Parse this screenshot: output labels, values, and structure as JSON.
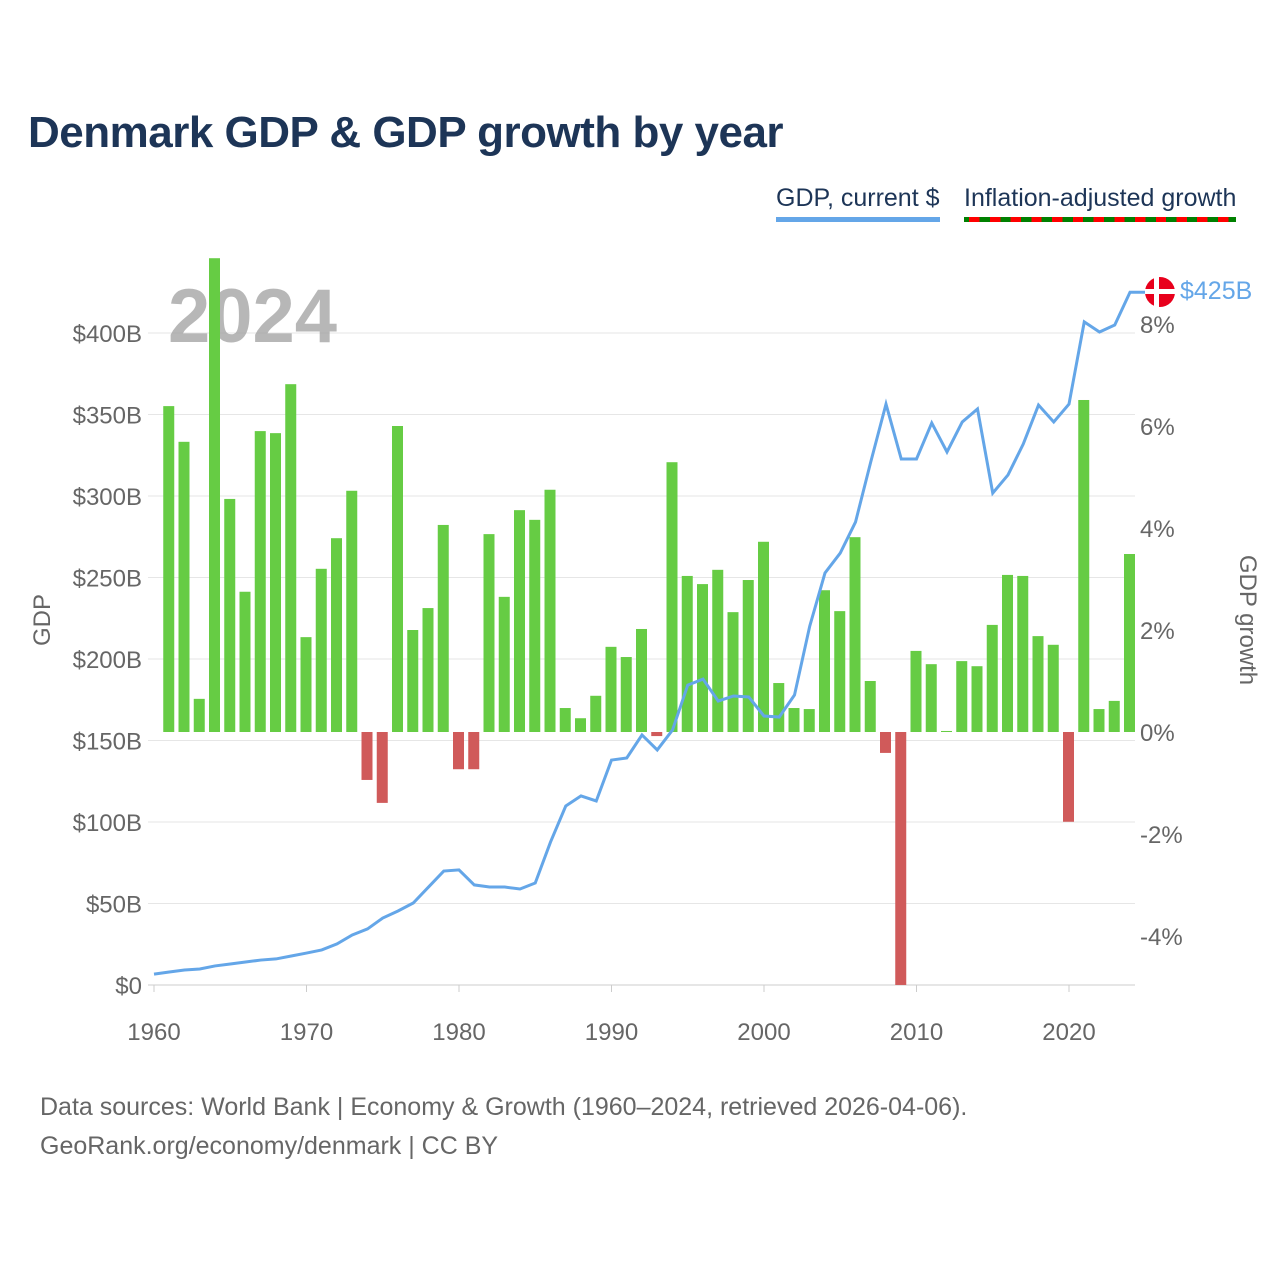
{
  "title": "Denmark GDP & GDP growth by year",
  "legend": {
    "gdp": "GDP, current $",
    "growth": "Inflation-adjusted growth"
  },
  "footer": {
    "line1": "Data sources: World Bank | Economy & Growth (1960–2024, retrieved 2026-04-06).",
    "line2": "GeoRank.org/economy/denmark | CC BY"
  },
  "year_label": "2024",
  "end_label": "$425B",
  "colors": {
    "line": "#64a6e8",
    "positive": "#66cc44",
    "negative": "#d05a5a",
    "title": "#1d3557"
  },
  "chart_data": {
    "type": "bar+line",
    "title": "Denmark GDP & GDP growth by year",
    "xlabel": "",
    "ylabel": "GDP",
    "y2label": "GDP growth",
    "xlim": [
      1960,
      2024
    ],
    "ylim": [
      0,
      400
    ],
    "y2lim": [
      -5,
      9
    ],
    "x_ticks": [
      "1960",
      "1970",
      "1980",
      "1990",
      "2000",
      "2010",
      "2020"
    ],
    "y_ticks": [
      "$0",
      "$50B",
      "$100B",
      "$150B",
      "$200B",
      "$250B",
      "$300B",
      "$350B",
      "$400B"
    ],
    "y2_ticks": [
      "-4%",
      "-2%",
      "0%",
      "2%",
      "4%",
      "6%",
      "8%"
    ],
    "gdp_series": {
      "name": "GDP, current $ (billions)",
      "years": [
        1960,
        1961,
        1962,
        1963,
        1964,
        1965,
        1966,
        1967,
        1968,
        1969,
        1970,
        1971,
        1972,
        1973,
        1974,
        1975,
        1976,
        1977,
        1978,
        1979,
        1980,
        1981,
        1982,
        1983,
        1984,
        1985,
        1986,
        1987,
        1988,
        1989,
        1990,
        1991,
        1992,
        1993,
        1994,
        1995,
        1996,
        1997,
        1998,
        1999,
        2000,
        2001,
        2002,
        2003,
        2004,
        2005,
        2006,
        2007,
        2008,
        2009,
        2010,
        2011,
        2012,
        2013,
        2014,
        2015,
        2016,
        2017,
        2018,
        2019,
        2020,
        2021,
        2022,
        2023,
        2024
      ],
      "values": [
        6.7,
        8.0,
        9.2,
        9.8,
        11.7,
        12.9,
        14.1,
        15.3,
        16.0,
        17.8,
        19.6,
        21.5,
        25.2,
        30.7,
        34.4,
        41.1,
        45.4,
        50.3,
        60.1,
        69.9,
        70.6,
        61.4,
        60.1,
        60.1,
        58.9,
        62.6,
        87.7,
        109.8,
        116.0,
        112.9,
        138.0,
        139.3,
        153.4,
        144.2,
        156.4,
        184.0,
        187.7,
        174.2,
        177.3,
        176.7,
        165.0,
        164.4,
        177.9,
        220.2,
        252.8,
        265.0,
        284.0,
        320.9,
        356.4,
        322.7,
        322.7,
        344.8,
        327.0,
        345.4,
        353.4,
        301.8,
        312.9,
        331.9,
        355.8,
        345.4,
        356.4,
        406.8,
        400.6,
        404.9,
        425.0
      ]
    },
    "growth_series": {
      "name": "Inflation-adjusted growth (%)",
      "years": [
        1961,
        1962,
        1963,
        1964,
        1965,
        1966,
        1967,
        1968,
        1969,
        1970,
        1971,
        1972,
        1973,
        1974,
        1975,
        1976,
        1977,
        1978,
        1979,
        1980,
        1981,
        1982,
        1983,
        1984,
        1985,
        1986,
        1987,
        1988,
        1989,
        1990,
        1991,
        1992,
        1993,
        1994,
        1995,
        1996,
        1997,
        1998,
        1999,
        2000,
        2001,
        2002,
        2003,
        2004,
        2005,
        2006,
        2007,
        2008,
        2009,
        2010,
        2011,
        2012,
        2013,
        2014,
        2015,
        2016,
        2017,
        2018,
        2019,
        2020,
        2021,
        2022,
        2023,
        2024
      ],
      "values": [
        6.39,
        5.69,
        0.65,
        9.29,
        4.57,
        2.75,
        5.9,
        5.86,
        6.82,
        1.86,
        3.2,
        3.8,
        4.73,
        -0.94,
        -1.39,
        6.0,
        2.0,
        2.43,
        4.06,
        -0.73,
        -0.73,
        3.88,
        2.65,
        4.35,
        4.16,
        4.75,
        0.47,
        0.27,
        0.71,
        1.67,
        1.47,
        2.02,
        -0.08,
        5.29,
        3.06,
        2.9,
        3.18,
        2.35,
        2.98,
        3.73,
        0.96,
        0.47,
        0.45,
        2.78,
        2.37,
        3.82,
        1.0,
        -0.41,
        -4.96,
        1.59,
        1.33,
        0.02,
        1.39,
        1.29,
        2.1,
        3.08,
        3.06,
        1.88,
        1.71,
        -1.76,
        6.51,
        0.45,
        0.61,
        3.49
      ]
    }
  }
}
